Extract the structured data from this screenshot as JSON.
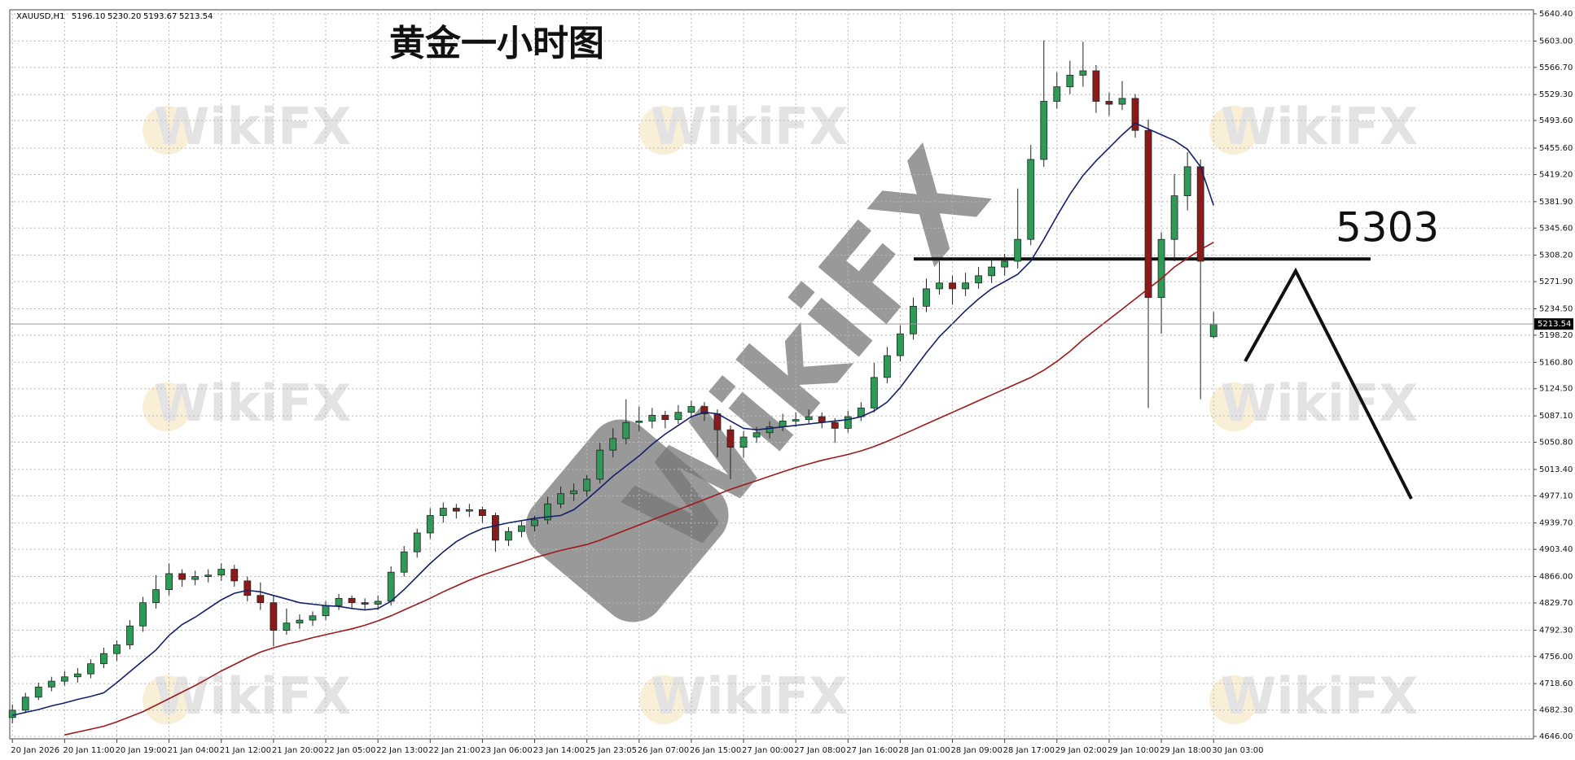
{
  "chart_data": {
    "type": "candlestick",
    "title": "黄金一小时图",
    "header": {
      "symbol": "XAUUSD,H1",
      "ohlc_labels": [
        "5196.10",
        "5230.20",
        "5193.67",
        "5213.54"
      ]
    },
    "watermark": "WikiFX",
    "level": 5303,
    "last_price": 5213.54,
    "bull_color": "#2f9a57",
    "bear_color": "#8b1a1a",
    "grid": true,
    "xlim": [
      -0.2,
      116.5
    ],
    "ylim": [
      4646,
      5640.4
    ],
    "yticks": [
      {
        "value": 5640.4,
        "label": "5640.40"
      },
      {
        "value": 5603,
        "label": "5603.00"
      },
      {
        "value": 5566.7,
        "label": "5566.70"
      },
      {
        "value": 5529.3,
        "label": "5529.30"
      },
      {
        "value": 5493.6,
        "label": "5493.60"
      },
      {
        "value": 5455.6,
        "label": "5455.60"
      },
      {
        "value": 5419.2,
        "label": "5419.20"
      },
      {
        "value": 5381.9,
        "label": "5381.90"
      },
      {
        "value": 5345.6,
        "label": "5345.60"
      },
      {
        "value": 5308.2,
        "label": "5308.20"
      },
      {
        "value": 5271.9,
        "label": "5271.90"
      },
      {
        "value": 5234.5,
        "label": "5234.50"
      },
      {
        "value": 5198.2,
        "label": "5198.20"
      },
      {
        "value": 5160.8,
        "label": "5160.80"
      },
      {
        "value": 5124.5,
        "label": "5124.50"
      },
      {
        "value": 5087.1,
        "label": "5087.10"
      },
      {
        "value": 5050.8,
        "label": "5050.80"
      },
      {
        "value": 5013.4,
        "label": "5013.40"
      },
      {
        "value": 4977.1,
        "label": "4977.10"
      },
      {
        "value": 4939.7,
        "label": "4939.70"
      },
      {
        "value": 4903.4,
        "label": "4903.40"
      },
      {
        "value": 4866,
        "label": "4866.00"
      },
      {
        "value": 4829.7,
        "label": "4829.70"
      },
      {
        "value": 4792.3,
        "label": "4792.30"
      },
      {
        "value": 4756,
        "label": "4756.00"
      },
      {
        "value": 4718.6,
        "label": "4718.60"
      },
      {
        "value": 4682.3,
        "label": "4682.30"
      },
      {
        "value": 4646,
        "label": "4646.00"
      }
    ],
    "xticks": [
      {
        "value": 0,
        "label": "20 Jan 2026"
      },
      {
        "value": 4,
        "label": "20 Jan 11:00"
      },
      {
        "value": 8,
        "label": "20 Jan 19:00"
      },
      {
        "value": 12,
        "label": "21 Jan 04:00"
      },
      {
        "value": 16,
        "label": "21 Jan 12:00"
      },
      {
        "value": 20,
        "label": "21 Jan 20:00"
      },
      {
        "value": 24,
        "label": "22 Jan 05:00"
      },
      {
        "value": 28,
        "label": "22 Jan 13:00"
      },
      {
        "value": 32,
        "label": "22 Jan 21:00"
      },
      {
        "value": 36,
        "label": "23 Jan 06:00"
      },
      {
        "value": 40,
        "label": "23 Jan 14:00"
      },
      {
        "value": 44,
        "label": "25 Jan 23:05"
      },
      {
        "value": 48,
        "label": "26 Jan 07:00"
      },
      {
        "value": 52,
        "label": "26 Jan 15:00"
      },
      {
        "value": 56,
        "label": "27 Jan 00:00"
      },
      {
        "value": 60,
        "label": "27 Jan 08:00"
      },
      {
        "value": 64,
        "label": "27 Jan 16:00"
      },
      {
        "value": 68,
        "label": "28 Jan 01:00"
      },
      {
        "value": 72,
        "label": "28 Jan 09:00"
      },
      {
        "value": 76,
        "label": "28 Jan 17:00"
      },
      {
        "value": 80,
        "label": "29 Jan 02:00"
      },
      {
        "value": 84,
        "label": "29 Jan 10:00"
      },
      {
        "value": 88,
        "label": "29 Jan 18:00"
      },
      {
        "value": 92,
        "label": "30 Jan 03:00"
      }
    ],
    "ohlc": [
      [
        4672,
        4690,
        4664,
        4682
      ],
      [
        4682,
        4706,
        4678,
        4700
      ],
      [
        4700,
        4720,
        4696,
        4714
      ],
      [
        4714,
        4728,
        4708,
        4722
      ],
      [
        4722,
        4736,
        4716,
        4728
      ],
      [
        4728,
        4740,
        4720,
        4732
      ],
      [
        4732,
        4752,
        4726,
        4746
      ],
      [
        4746,
        4768,
        4740,
        4760
      ],
      [
        4760,
        4778,
        4750,
        4772
      ],
      [
        4772,
        4806,
        4766,
        4798
      ],
      [
        4798,
        4838,
        4790,
        4830
      ],
      [
        4830,
        4868,
        4822,
        4848
      ],
      [
        4848,
        4884,
        4840,
        4870
      ],
      [
        4870,
        4876,
        4852,
        4862
      ],
      [
        4862,
        4874,
        4854,
        4866
      ],
      [
        4866,
        4876,
        4858,
        4868
      ],
      [
        4868,
        4884,
        4860,
        4876
      ],
      [
        4876,
        4882,
        4852,
        4860
      ],
      [
        4860,
        4866,
        4832,
        4840
      ],
      [
        4840,
        4858,
        4820,
        4830
      ],
      [
        4830,
        4840,
        4770,
        4792
      ],
      [
        4792,
        4822,
        4786,
        4802
      ],
      [
        4802,
        4814,
        4794,
        4806
      ],
      [
        4806,
        4818,
        4798,
        4812
      ],
      [
        4812,
        4832,
        4806,
        4826
      ],
      [
        4826,
        4842,
        4820,
        4836
      ],
      [
        4836,
        4840,
        4822,
        4830
      ],
      [
        4830,
        4836,
        4820,
        4828
      ],
      [
        4828,
        4840,
        4820,
        4832
      ],
      [
        4832,
        4880,
        4826,
        4872
      ],
      [
        4872,
        4908,
        4866,
        4900
      ],
      [
        4900,
        4932,
        4892,
        4926
      ],
      [
        4926,
        4960,
        4918,
        4950
      ],
      [
        4950,
        4968,
        4940,
        4960
      ],
      [
        4960,
        4966,
        4946,
        4956
      ],
      [
        4956,
        4966,
        4948,
        4958
      ],
      [
        4958,
        4962,
        4940,
        4950
      ],
      [
        4950,
        4954,
        4900,
        4916
      ],
      [
        4916,
        4934,
        4908,
        4928
      ],
      [
        4928,
        4942,
        4920,
        4936
      ],
      [
        4936,
        4950,
        4928,
        4944
      ],
      [
        4944,
        4976,
        4938,
        4966
      ],
      [
        4966,
        4990,
        4960,
        4980
      ],
      [
        4980,
        4994,
        4970,
        4984
      ],
      [
        4984,
        5006,
        4976,
        5000
      ],
      [
        5000,
        5050,
        4994,
        5040
      ],
      [
        5040,
        5070,
        5030,
        5056
      ],
      [
        5056,
        5110,
        5048,
        5078
      ],
      [
        5078,
        5100,
        5066,
        5080
      ],
      [
        5080,
        5098,
        5070,
        5088
      ],
      [
        5088,
        5094,
        5070,
        5082
      ],
      [
        5082,
        5102,
        5076,
        5092
      ],
      [
        5092,
        5108,
        5084,
        5100
      ],
      [
        5100,
        5106,
        5080,
        5090
      ],
      [
        5090,
        5096,
        5030,
        5068
      ],
      [
        5068,
        5074,
        5000,
        5044
      ],
      [
        5044,
        5066,
        5030,
        5058
      ],
      [
        5058,
        5072,
        5050,
        5064
      ],
      [
        5064,
        5080,
        5056,
        5072
      ],
      [
        5072,
        5090,
        5066,
        5080
      ],
      [
        5080,
        5092,
        5072,
        5082
      ],
      [
        5082,
        5096,
        5076,
        5086
      ],
      [
        5086,
        5092,
        5070,
        5078
      ],
      [
        5078,
        5084,
        5050,
        5070
      ],
      [
        5070,
        5094,
        5064,
        5086
      ],
      [
        5086,
        5106,
        5080,
        5098
      ],
      [
        5098,
        5160,
        5092,
        5140
      ],
      [
        5140,
        5182,
        5132,
        5170
      ],
      [
        5170,
        5212,
        5162,
        5200
      ],
      [
        5200,
        5250,
        5192,
        5238
      ],
      [
        5238,
        5276,
        5230,
        5262
      ],
      [
        5262,
        5300,
        5254,
        5270
      ],
      [
        5270,
        5280,
        5240,
        5262
      ],
      [
        5262,
        5284,
        5252,
        5270
      ],
      [
        5270,
        5292,
        5262,
        5280
      ],
      [
        5280,
        5302,
        5270,
        5292
      ],
      [
        5292,
        5310,
        5280,
        5300
      ],
      [
        5300,
        5400,
        5290,
        5330
      ],
      [
        5330,
        5460,
        5322,
        5440
      ],
      [
        5440,
        5604,
        5430,
        5520
      ],
      [
        5520,
        5560,
        5510,
        5540
      ],
      [
        5540,
        5576,
        5530,
        5556
      ],
      [
        5556,
        5602,
        5540,
        5562
      ],
      [
        5562,
        5570,
        5504,
        5520
      ],
      [
        5520,
        5532,
        5500,
        5516
      ],
      [
        5516,
        5548,
        5508,
        5524
      ],
      [
        5524,
        5530,
        5470,
        5480
      ],
      [
        5480,
        5495,
        5098,
        5250
      ],
      [
        5250,
        5340,
        5200,
        5330
      ],
      [
        5330,
        5420,
        5300,
        5390
      ],
      [
        5390,
        5450,
        5370,
        5430
      ],
      [
        5430,
        5440,
        5110,
        5300
      ],
      [
        5196.1,
        5230.2,
        5193.67,
        5213.54
      ]
    ],
    "lines": [
      {
        "color": "#14206e",
        "values": [
          4675,
          4679,
          4683,
          4688,
          4692,
          4697,
          4701,
          4706,
          4720,
          4735,
          4750,
          4765,
          4785,
          4800,
          4810,
          4822,
          4834,
          4843,
          4847,
          4845,
          4840,
          4835,
          4830,
          4828,
          4826,
          4825,
          4822,
          4820,
          4822,
          4832,
          4848,
          4866,
          4884,
          4900,
          4914,
          4924,
          4932,
          4936,
          4940,
          4943,
          4946,
          4948,
          4950,
          4958,
          4972,
          4988,
          5004,
          5018,
          5032,
          5048,
          5062,
          5074,
          5086,
          5092,
          5090,
          5080,
          5070,
          5068,
          5070,
          5072,
          5074,
          5076,
          5078,
          5080,
          5082,
          5086,
          5094,
          5106,
          5126,
          5150,
          5174,
          5196,
          5214,
          5232,
          5248,
          5262,
          5272,
          5282,
          5300,
          5330,
          5362,
          5392,
          5418,
          5438,
          5456,
          5474,
          5490,
          5482,
          5474,
          5466,
          5454,
          5430,
          5377
        ]
      },
      {
        "color": "#a01818",
        "values": [
          null,
          null,
          null,
          null,
          4648,
          4652,
          4656,
          4660,
          4666,
          4673,
          4680,
          4689,
          4698,
          4707,
          4716,
          4726,
          4736,
          4745,
          4754,
          4762,
          4768,
          4773,
          4777,
          4782,
          4786,
          4790,
          4794,
          4799,
          4805,
          4812,
          4820,
          4828,
          4836,
          4845,
          4853,
          4861,
          4868,
          4874,
          4880,
          4886,
          4892,
          4897,
          4902,
          4906,
          4910,
          4916,
          4923,
          4930,
          4937,
          4944,
          4951,
          4958,
          4965,
          4972,
          4979,
          4986,
          4992,
          4998,
          5004,
          5010,
          5016,
          5021,
          5026,
          5030,
          5034,
          5039,
          5045,
          5052,
          5060,
          5068,
          5076,
          5084,
          5092,
          5100,
          5108,
          5116,
          5124,
          5132,
          5140,
          5150,
          5162,
          5176,
          5192,
          5206,
          5220,
          5234,
          5248,
          5262,
          5276,
          5292,
          5304,
          5316,
          5326
        ]
      }
    ]
  }
}
